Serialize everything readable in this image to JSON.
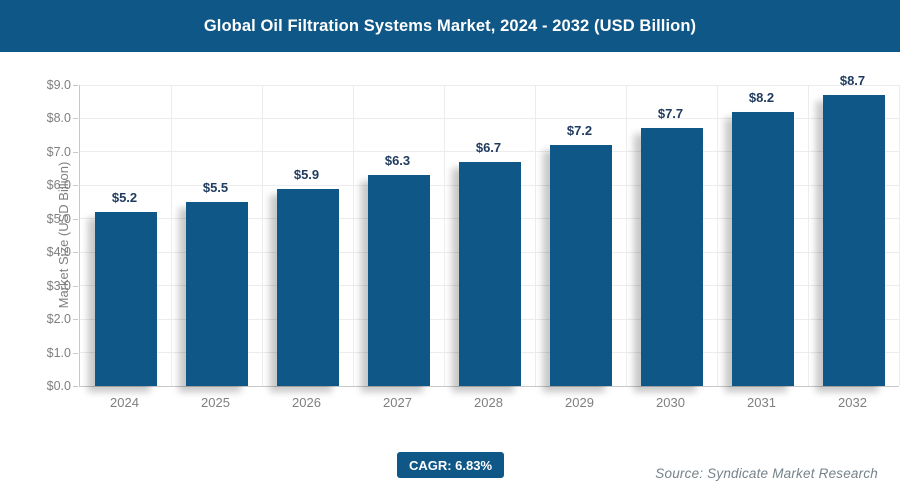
{
  "header": {
    "title": "Global Oil Filtration Systems Market, 2024 - 2032 (USD Billion)"
  },
  "chart_data": {
    "type": "bar",
    "title": "Global Oil Filtration Systems Market, 2024 - 2032 (USD Billion)",
    "categories": [
      "2024",
      "2025",
      "2026",
      "2027",
      "2028",
      "2029",
      "2030",
      "2031",
      "2032"
    ],
    "values": [
      5.2,
      5.5,
      5.9,
      6.3,
      6.7,
      7.2,
      7.7,
      8.2,
      8.7
    ],
    "bar_labels": [
      "$5.2",
      "$5.5",
      "$5.9",
      "$6.3",
      "$6.7",
      "$7.2",
      "$7.7",
      "$8.2",
      "$8.7"
    ],
    "xlabel": "",
    "ylabel": "Market Size (USD Billion)",
    "ylim": [
      0,
      9
    ],
    "ytick_values": [
      0,
      1,
      2,
      3,
      4,
      5,
      6,
      7,
      8,
      9
    ],
    "ytick_labels": [
      "$0.0",
      "$1.0",
      "$2.0",
      "$3.0",
      "$4.0",
      "$5.0",
      "$6.0",
      "$7.0",
      "$8.0",
      "$9.0"
    ],
    "grid": true,
    "legend": "none",
    "bar_color": "#0f5787",
    "bar_label_color": "#1f3a5f",
    "axis_text_color": "#7f7f7f"
  },
  "footer": {
    "cagr_label": "CAGR: 6.83%",
    "source": "Source: Syndicate Market Research"
  },
  "colors": {
    "accent": "#0f5787"
  }
}
